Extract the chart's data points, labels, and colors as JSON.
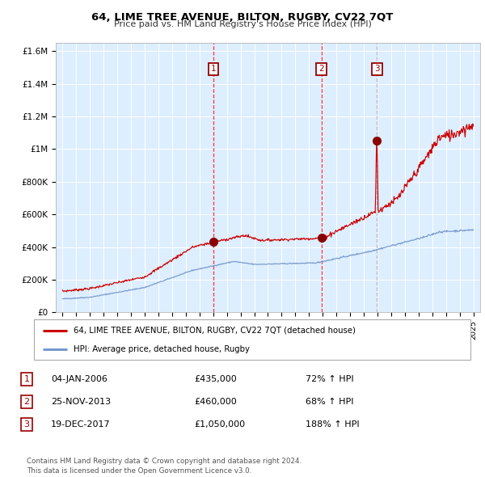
{
  "title": "64, LIME TREE AVENUE, BILTON, RUGBY, CV22 7QT",
  "subtitle": "Price paid vs. HM Land Registry's House Price Index (HPI)",
  "bg_color": "#ddeeff",
  "red_line_color": "#cc0000",
  "blue_line_color": "#7799cc",
  "sale_points": [
    {
      "label": "1",
      "x_year": 2006.01,
      "price": 435000
    },
    {
      "label": "2",
      "x_year": 2013.9,
      "price": 460000
    },
    {
      "label": "3",
      "x_year": 2017.97,
      "price": 1050000
    }
  ],
  "legend_entries": [
    "64, LIME TREE AVENUE, BILTON, RUGBY, CV22 7QT (detached house)",
    "HPI: Average price, detached house, Rugby"
  ],
  "table_rows": [
    [
      "1",
      "04-JAN-2006",
      "£435,000",
      "72% ↑ HPI"
    ],
    [
      "2",
      "25-NOV-2013",
      "£460,000",
      "68% ↑ HPI"
    ],
    [
      "3",
      "19-DEC-2017",
      "£1,050,000",
      "188% ↑ HPI"
    ]
  ],
  "footer": "Contains HM Land Registry data © Crown copyright and database right 2024.\nThis data is licensed under the Open Government Licence v3.0.",
  "ylim": [
    0,
    1650000
  ],
  "xlim_start": 1994.5,
  "xlim_end": 2025.5,
  "yticks": [
    0,
    200000,
    400000,
    600000,
    800000,
    1000000,
    1200000,
    1400000,
    1600000
  ],
  "ytick_labels": [
    "£0",
    "£200K",
    "£400K",
    "£600K",
    "£800K",
    "£1M",
    "£1.2M",
    "£1.4M",
    "£1.6M"
  ],
  "xticks": [
    1995,
    1996,
    1997,
    1998,
    1999,
    2000,
    2001,
    2002,
    2003,
    2004,
    2005,
    2006,
    2007,
    2008,
    2009,
    2010,
    2011,
    2012,
    2013,
    2014,
    2015,
    2016,
    2017,
    2018,
    2019,
    2020,
    2021,
    2022,
    2023,
    2024,
    2025
  ]
}
